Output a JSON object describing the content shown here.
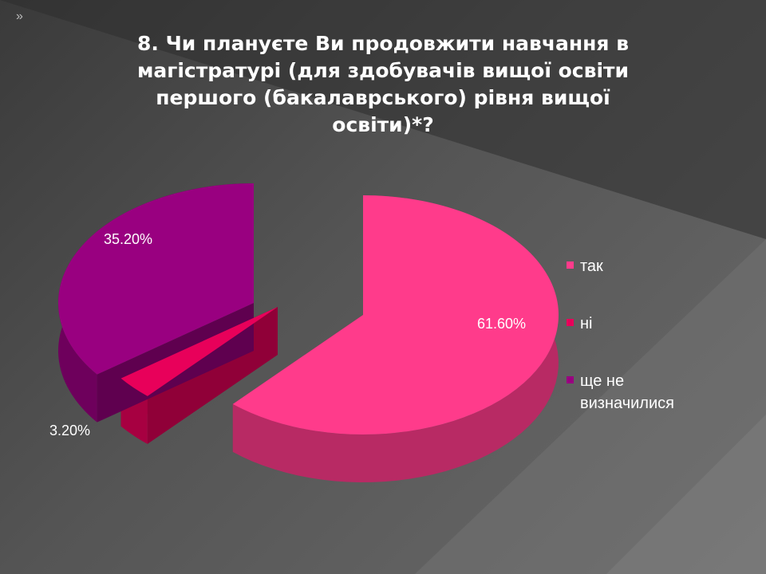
{
  "slide": {
    "chevron": "»"
  },
  "chart_data": {
    "type": "pie",
    "title": "8. Чи плануєте Ви продовжити навчання в магістратурі (для здобувачів вищої освіти першого (бакалаврського) рівня вищої освіти)*?",
    "categories": [
      "так",
      "ні",
      "ще не визначилися"
    ],
    "values": [
      61.6,
      3.2,
      35.2
    ],
    "data_labels": [
      "61.60%",
      "3.20%",
      "35.20%"
    ],
    "colors": [
      "#ff3b8b",
      "#e8005a",
      "#990080"
    ],
    "legend_position": "right",
    "style": "3d-exploded"
  }
}
